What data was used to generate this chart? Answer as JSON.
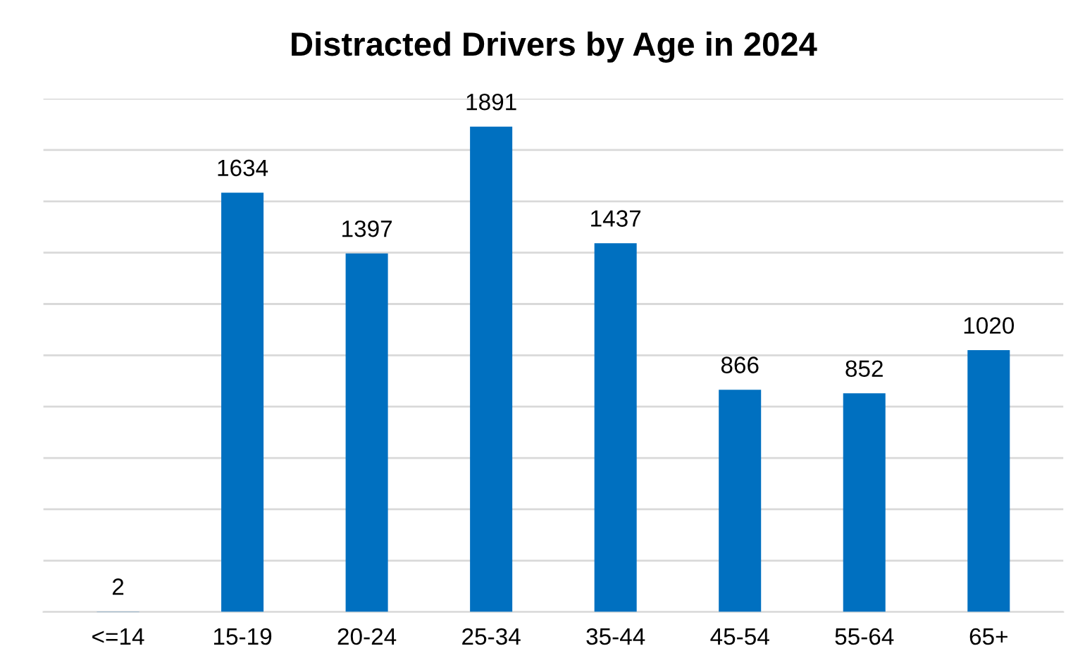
{
  "chart_data": {
    "type": "bar",
    "title": "Distracted Drivers by Age in 2024",
    "categories": [
      "<=14",
      "15-19",
      "20-24",
      "25-34",
      "35-44",
      "45-54",
      "55-64",
      "65+"
    ],
    "values": [
      2,
      1634,
      1397,
      1891,
      1437,
      866,
      852,
      1020
    ],
    "color": "#0070c0",
    "ylim": [
      0,
      2000
    ],
    "yticks": [
      {
        "value": 0,
        "label": null
      },
      {
        "value": 200,
        "label": null
      },
      {
        "value": 400,
        "label": null
      },
      {
        "value": 600,
        "label": null
      },
      {
        "value": 800,
        "label": null
      },
      {
        "value": 1000,
        "label": null
      },
      {
        "value": 1200,
        "label": null
      },
      {
        "value": 1400,
        "label": null
      },
      {
        "value": 1600,
        "label": null
      },
      {
        "value": 1800,
        "label": null
      },
      {
        "value": 2000,
        "label": null
      }
    ],
    "grid": "y",
    "tick_labels": "x",
    "data_labels": true
  }
}
